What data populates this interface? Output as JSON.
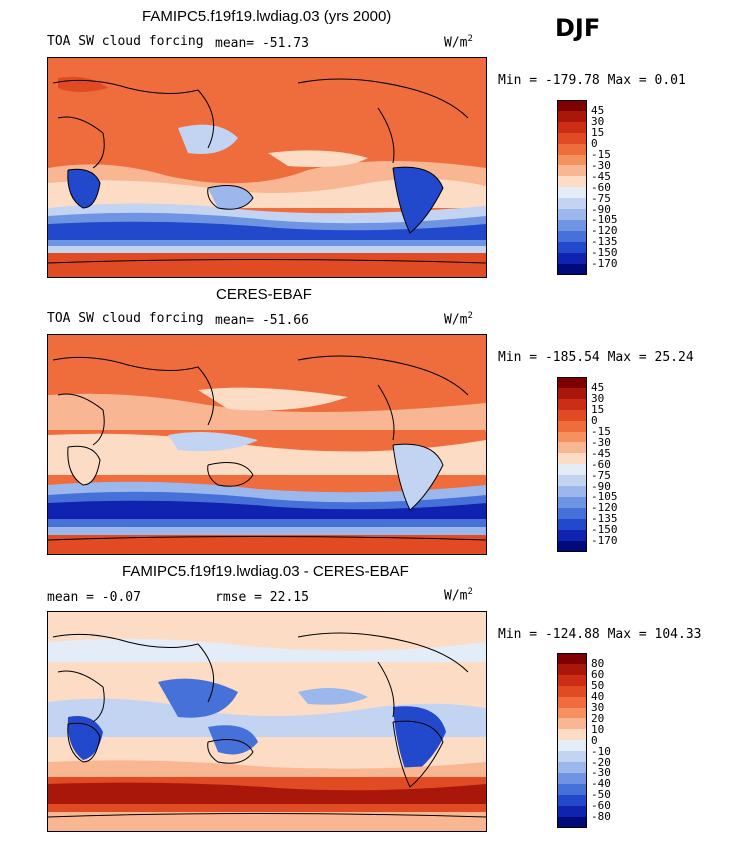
{
  "season": "DJF",
  "panels": [
    {
      "title": "FAMIPC5.f19f19.lwdiag.03 (yrs 2000)",
      "left_label": "TOA SW cloud forcing",
      "stat1": "mean= -51.73",
      "stat2": "",
      "units": "W/m",
      "units_exp": "2",
      "minmax": "Min = -179.78 Max =   0.01",
      "levels": [
        "45",
        "30",
        "15",
        "0",
        "-15",
        "-30",
        "-45",
        "-60",
        "-75",
        "-90",
        "-105",
        "-120",
        "-135",
        "-150",
        "-170"
      ],
      "colors": [
        "#7f0000",
        "#a8170a",
        "#cc2e15",
        "#e04b24",
        "#ef6c3c",
        "#f5905f",
        "#f9b692",
        "#fcdcc5",
        "#e4ecf8",
        "#c2d4f2",
        "#9bb7ec",
        "#6f94e2",
        "#4671d8",
        "#2248cc",
        "#0f22b0",
        "#000a78"
      ]
    },
    {
      "title": "CERES-EBAF",
      "left_label": "TOA SW cloud forcing",
      "stat1": "mean= -51.66",
      "stat2": "",
      "units": "W/m",
      "units_exp": "2",
      "minmax": "Min = -185.54 Max =  25.24",
      "levels": [
        "45",
        "30",
        "15",
        "0",
        "-15",
        "-30",
        "-45",
        "-60",
        "-75",
        "-90",
        "-105",
        "-120",
        "-135",
        "-150",
        "-170"
      ],
      "colors": [
        "#7f0000",
        "#a8170a",
        "#cc2e15",
        "#e04b24",
        "#ef6c3c",
        "#f5905f",
        "#f9b692",
        "#fcdcc5",
        "#e4ecf8",
        "#c2d4f2",
        "#9bb7ec",
        "#6f94e2",
        "#4671d8",
        "#2248cc",
        "#0f22b0",
        "#000a78"
      ]
    },
    {
      "title": "FAMIPC5.f19f19.lwdiag.03 - CERES-EBAF",
      "left_label": "mean =  -0.07",
      "stat1": "",
      "stat2": "rmse =  22.15",
      "units": "W/m",
      "units_exp": "2",
      "minmax": "Min = -124.88 Max = 104.33",
      "levels": [
        "80",
        "60",
        "50",
        "40",
        "30",
        "20",
        "10",
        "0",
        "-10",
        "-20",
        "-30",
        "-40",
        "-50",
        "-60",
        "-80"
      ],
      "colors": [
        "#7f0000",
        "#a8170a",
        "#cc2e15",
        "#e04b24",
        "#ef6c3c",
        "#f5905f",
        "#f9b692",
        "#fcdcc5",
        "#e4ecf8",
        "#c2d4f2",
        "#9bb7ec",
        "#6f94e2",
        "#4671d8",
        "#2248cc",
        "#0f22b0",
        "#000a78"
      ]
    }
  ]
}
